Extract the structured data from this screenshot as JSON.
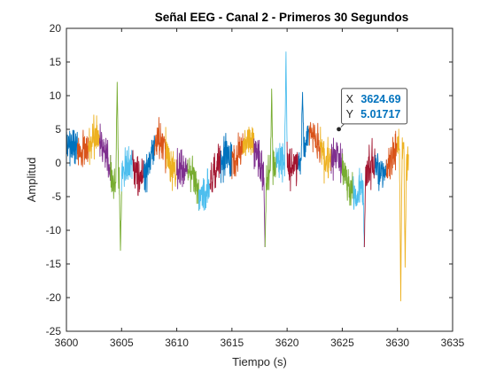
{
  "chart_data": {
    "type": "line",
    "title": "Señal EEG - Canal 2 - Primeros 30 Segundos",
    "xlabel": "Tiempo (s)",
    "ylabel": "Amplitud",
    "xlim": [
      3600,
      3635
    ],
    "ylim": [
      -25,
      20
    ],
    "xticks": [
      "3600",
      "3605",
      "3610",
      "3615",
      "3620",
      "3625",
      "3630",
      "3635"
    ],
    "yticks": [
      "20",
      "15",
      "10",
      "5",
      "0",
      "-5",
      "-10",
      "-15",
      "-20",
      "-25"
    ],
    "grid": false,
    "legend": "none",
    "series_colors": [
      "#0072BD",
      "#D95319",
      "#EDB120",
      "#7E2F8E",
      "#77AC30",
      "#4DBEEE",
      "#A2142F"
    ],
    "segment_seconds": 1,
    "x_range": [
      3600,
      3631
    ],
    "envelope_features": [
      {
        "x": 3619.9,
        "max": 16.5
      },
      {
        "x": 3630.3,
        "min": -20.5
      },
      {
        "x": 3604.6,
        "max": 12.0
      },
      {
        "x": 3604.9,
        "min": -13.0
      },
      {
        "x": 3618.0,
        "min": -12.5
      },
      {
        "x": 3618.6,
        "max": 11.0
      },
      {
        "x": 3621.4,
        "max": 10.5
      },
      {
        "x": 3630.7,
        "min": -15.5
      },
      {
        "x": 3627.0,
        "min": -12.5
      }
    ],
    "datatip": {
      "x": 3624.69,
      "y": 5.01717,
      "x_label": "X",
      "y_label": "Y",
      "x_text": "3624.69",
      "y_text": "5.01717"
    }
  }
}
